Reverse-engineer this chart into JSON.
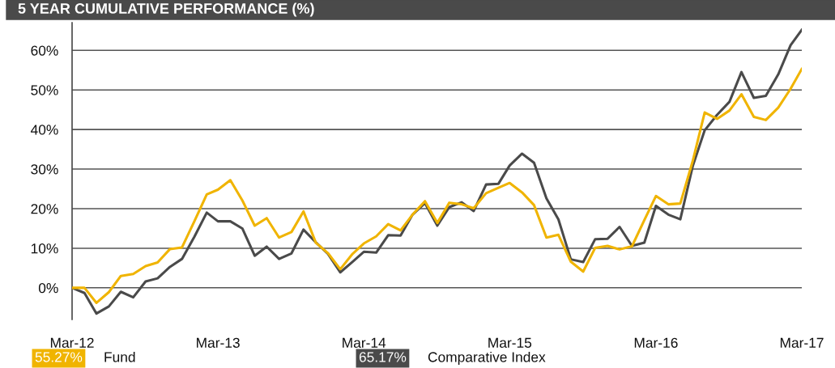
{
  "chart_data": {
    "type": "line",
    "title": "5 YEAR CUMULATIVE PERFORMANCE (%)",
    "x": [
      "2012-03",
      "2012-04",
      "2012-05",
      "2012-06",
      "2012-07",
      "2012-08",
      "2012-09",
      "2012-10",
      "2012-11",
      "2012-12",
      "2013-01",
      "2013-02",
      "2013-03",
      "2013-04",
      "2013-05",
      "2013-06",
      "2013-07",
      "2013-08",
      "2013-09",
      "2013-10",
      "2013-11",
      "2013-12",
      "2014-01",
      "2014-02",
      "2014-03",
      "2014-04",
      "2014-05",
      "2014-06",
      "2014-07",
      "2014-08",
      "2014-09",
      "2014-10",
      "2014-11",
      "2014-12",
      "2015-01",
      "2015-02",
      "2015-03",
      "2015-04",
      "2015-05",
      "2015-06",
      "2015-07",
      "2015-08",
      "2015-09",
      "2015-10",
      "2015-11",
      "2015-12",
      "2016-01",
      "2016-02",
      "2016-03",
      "2016-04",
      "2016-05",
      "2016-06",
      "2016-07",
      "2016-08",
      "2016-09",
      "2016-10",
      "2016-11",
      "2016-12",
      "2017-01",
      "2017-02",
      "2017-03"
    ],
    "series": [
      {
        "name": "Fund",
        "color": "#f0b400",
        "values": [
          0,
          0,
          -3.8,
          -1.1,
          3.0,
          3.5,
          5.5,
          6.4,
          9.8,
          10.2,
          16.8,
          23.6,
          24.8,
          27.2,
          22.1,
          15.7,
          17.6,
          12.7,
          14.1,
          19.3,
          11.4,
          8.8,
          4.7,
          8.6,
          11.2,
          13.0,
          16.1,
          14.5,
          18.5,
          21.9,
          16.4,
          21.5,
          21.1,
          20.1,
          23.9,
          25.3,
          26.5,
          24.1,
          20.9,
          12.7,
          13.4,
          6.6,
          4.1,
          10.1,
          10.6,
          9.7,
          10.5,
          17.1,
          23.2,
          21.1,
          21.3,
          32.0,
          44.3,
          42.7,
          44.8,
          48.9,
          43.2,
          42.4,
          45.5,
          50.3,
          55.3
        ]
      },
      {
        "name": "Comparative Index",
        "color": "#4a4a4a",
        "values": [
          0,
          -1.3,
          -6.5,
          -4.7,
          -1.0,
          -2.4,
          1.6,
          2.4,
          5.3,
          7.3,
          12.9,
          19.0,
          16.8,
          16.8,
          15.0,
          8.1,
          10.4,
          7.3,
          8.7,
          14.7,
          11.5,
          8.6,
          3.9,
          6.6,
          9.1,
          8.9,
          13.3,
          13.2,
          18.5,
          21.4,
          15.7,
          20.4,
          21.6,
          19.4,
          26.1,
          26.3,
          30.9,
          33.9,
          31.6,
          22.6,
          17.3,
          7.2,
          6.5,
          12.3,
          12.4,
          15.4,
          10.6,
          11.4,
          20.7,
          18.5,
          17.3,
          30.7,
          39.8,
          43.7,
          47.0,
          54.5,
          48.0,
          48.5,
          53.9,
          61.3,
          65.2
        ]
      }
    ],
    "xlim": [
      "2012-03",
      "2017-03"
    ],
    "xticks": [
      {
        "value": "2012-03",
        "label": "Mar-12"
      },
      {
        "value": "2013-03",
        "label": "Mar-13"
      },
      {
        "value": "2014-03",
        "label": "Mar-14"
      },
      {
        "value": "2015-03",
        "label": "Mar-15"
      },
      {
        "value": "2016-03",
        "label": "Mar-16"
      },
      {
        "value": "2017-03",
        "label": "Mar-17"
      }
    ],
    "ylim": [
      -8,
      67
    ],
    "yticks": [
      {
        "value": 0,
        "label": "0%"
      },
      {
        "value": 10,
        "label": "10%"
      },
      {
        "value": 20,
        "label": "20%"
      },
      {
        "value": 30,
        "label": "30%"
      },
      {
        "value": 40,
        "label": "40%"
      },
      {
        "value": 50,
        "label": "50%"
      },
      {
        "value": 60,
        "label": "60%"
      }
    ],
    "grid": "y",
    "legend": "bottom left",
    "marker": "none",
    "line_style": "solid",
    "annotations": [
      "55.27%",
      "65.17%"
    ]
  }
}
